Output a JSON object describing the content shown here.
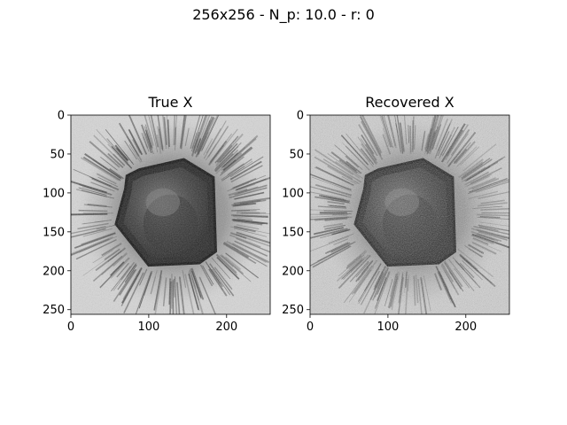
{
  "figure": {
    "suptitle": "256x256 - N_p: 10.0 - r: 0"
  },
  "chart_data": [
    {
      "type": "heatmap",
      "title": "True X",
      "xlabel": "",
      "ylabel": "",
      "image_size": [
        256,
        256
      ],
      "colormap": "gray",
      "xlim": [
        0,
        256
      ],
      "ylim": [
        256,
        0
      ],
      "xticks": [
        0,
        100,
        200
      ],
      "yticks": [
        0,
        50,
        100,
        150,
        200,
        250
      ],
      "grid": false,
      "content": "grayscale micrograph: dark hexagonal particle centered near (130,130) surrounded by a radial halo of dark streaks on a light background",
      "noise_level": 0.1
    },
    {
      "type": "heatmap",
      "title": "Recovered X",
      "xlabel": "",
      "ylabel": "",
      "image_size": [
        256,
        256
      ],
      "colormap": "gray",
      "xlim": [
        0,
        256
      ],
      "ylim": [
        256,
        0
      ],
      "xticks": [
        0,
        100,
        200
      ],
      "yticks": [
        0,
        50,
        100,
        150,
        200,
        250
      ],
      "grid": false,
      "content": "noisier reconstruction of the same hexagonal particle with radial halo",
      "noise_level": 0.22
    }
  ]
}
